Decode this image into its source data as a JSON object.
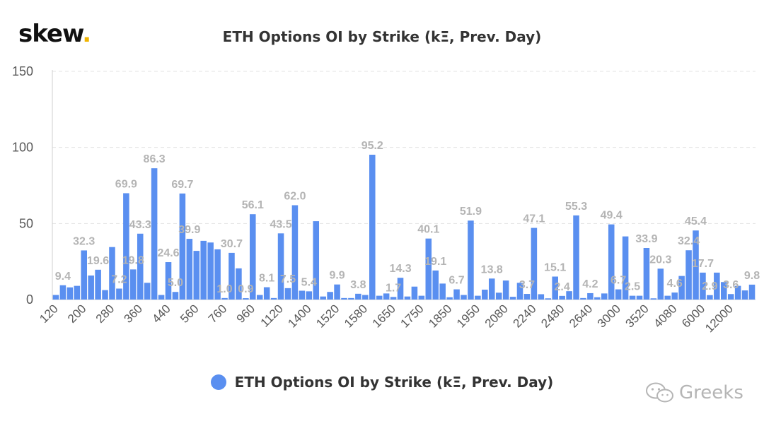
{
  "brand": {
    "name": "skew",
    "dot": "."
  },
  "watermark": {
    "text": "Greeks",
    "icon": "wechat-icon"
  },
  "colors": {
    "bar": "#5a8ff0",
    "label": "#b4b4b4",
    "grid": "#e3e3e3",
    "axis": "#595959",
    "accent": "#f0b400"
  },
  "chart_data": {
    "type": "bar",
    "title": "ETH Options OI by Strike (kΞ, Prev. Day)",
    "xlabel": "",
    "ylabel": "",
    "ylim": [
      0,
      150
    ],
    "yticks": [
      0,
      50,
      100,
      150
    ],
    "grid": true,
    "legend_position": "bottom-center",
    "xtick_labels": [
      "120",
      "200",
      "280",
      "360",
      "440",
      "560",
      "760",
      "960",
      "1120",
      "1400",
      "1520",
      "1580",
      "1650",
      "1750",
      "1850",
      "1950",
      "2080",
      "2240",
      "2480",
      "2640",
      "3000",
      "3520",
      "4080",
      "6000",
      "12000"
    ],
    "series": [
      {
        "name": "ETH Options OI by Strike (kΞ, Prev. Day)",
        "values": [
          3.0,
          9.4,
          8.0,
          9.0,
          32.3,
          15.8,
          19.6,
          6.2,
          34.5,
          7.2,
          69.9,
          19.8,
          43.3,
          11.0,
          86.3,
          3.0,
          24.6,
          5.0,
          69.7,
          39.9,
          32.0,
          38.6,
          37.5,
          33.0,
          1.0,
          30.7,
          20.5,
          0.9,
          56.1,
          3.0,
          8.1,
          1.0,
          43.5,
          7.5,
          62.0,
          5.8,
          5.4,
          51.5,
          2.0,
          5.0,
          9.9,
          1.0,
          1.0,
          3.8,
          3.0,
          95.2,
          2.5,
          4.0,
          1.7,
          14.3,
          2.0,
          8.5,
          2.5,
          40.1,
          19.1,
          10.5,
          1.5,
          6.7,
          3.0,
          51.9,
          2.5,
          6.5,
          13.8,
          4.5,
          12.5,
          1.8,
          11.0,
          3.7,
          47.1,
          3.5,
          0.8,
          15.1,
          2.4,
          5.5,
          55.3,
          1.0,
          4.2,
          1.5,
          4.0,
          49.4,
          6.7,
          41.5,
          2.5,
          2.5,
          33.9,
          0.8,
          20.3,
          2.5,
          4.6,
          15.5,
          32.4,
          45.4,
          17.7,
          2.9,
          17.7,
          11.5,
          3.6,
          9.0,
          6.0,
          9.8
        ],
        "data_labels": [
          null,
          "9.4",
          null,
          null,
          "32.3",
          null,
          "19.6",
          null,
          null,
          "7.2",
          "69.9",
          "19.8",
          "43.3",
          null,
          "86.3",
          null,
          "24.6",
          "5.0",
          "69.7",
          "39.9",
          null,
          null,
          null,
          null,
          "1.0",
          "30.7",
          null,
          "0.9",
          "56.1",
          null,
          "8.1",
          null,
          "43.5",
          "7.5",
          "62.0",
          null,
          "5.4",
          null,
          null,
          null,
          "9.9",
          null,
          null,
          "3.8",
          null,
          "95.2",
          null,
          null,
          "1.7",
          "14.3",
          null,
          null,
          null,
          "40.1",
          "19.1",
          null,
          null,
          "6.7",
          null,
          "51.9",
          null,
          null,
          "13.8",
          null,
          null,
          null,
          null,
          "3.7",
          "47.1",
          null,
          null,
          "15.1",
          "2.4",
          null,
          "55.3",
          null,
          "4.2",
          null,
          null,
          "49.4",
          "6.7",
          null,
          "2.5",
          null,
          "33.9",
          null,
          "20.3",
          null,
          "4.6",
          null,
          "32.4",
          "45.4",
          "17.7",
          "2.9",
          null,
          null,
          "3.6",
          null,
          null,
          "9.8"
        ]
      }
    ]
  }
}
